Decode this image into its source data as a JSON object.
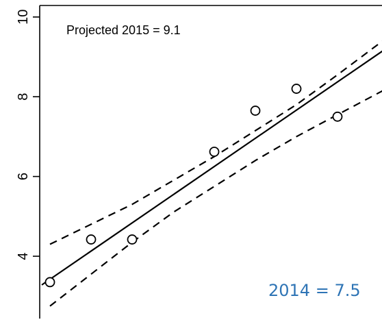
{
  "chart_data": {
    "type": "scatter",
    "title": "",
    "xlabel": "",
    "ylabel": "",
    "annotations": {
      "projection": "Projected 2015 =  9.1",
      "callout": "2014 = 7.5"
    },
    "y_ticks": [
      "4",
      "6",
      "8",
      "10"
    ],
    "xlim": [
      2007.1,
      2015.4
    ],
    "ylim": [
      3.0,
      10.2
    ],
    "points": {
      "x": [
        2007.3,
        2008.3,
        2009.3,
        2011.3,
        2012.3,
        2013.3,
        2014.3
      ],
      "y": [
        3.35,
        4.42,
        4.42,
        6.62,
        7.65,
        8.2,
        7.5
      ]
    },
    "fit_line": {
      "style": "solid",
      "x": [
        2007.1,
        2015.4
      ],
      "y": [
        3.28,
        9.15
      ]
    },
    "upper_band": {
      "style": "dashed",
      "x": [
        2007.3,
        2008.3,
        2009.3,
        2010.3,
        2011.3,
        2012.3,
        2013.3,
        2014.3,
        2015.4
      ],
      "y": [
        4.3,
        4.8,
        5.3,
        5.9,
        6.5,
        7.15,
        7.8,
        8.55,
        9.4
      ]
    },
    "lower_band": {
      "style": "dashed",
      "x": [
        2007.3,
        2008.3,
        2009.3,
        2010.3,
        2011.3,
        2012.3,
        2013.3,
        2014.3,
        2015.4
      ],
      "y": [
        2.75,
        3.55,
        4.35,
        5.1,
        5.75,
        6.4,
        7.0,
        7.55,
        8.15
      ]
    },
    "colors": {
      "ink": "#000000",
      "callout": "#2e74b5"
    }
  }
}
